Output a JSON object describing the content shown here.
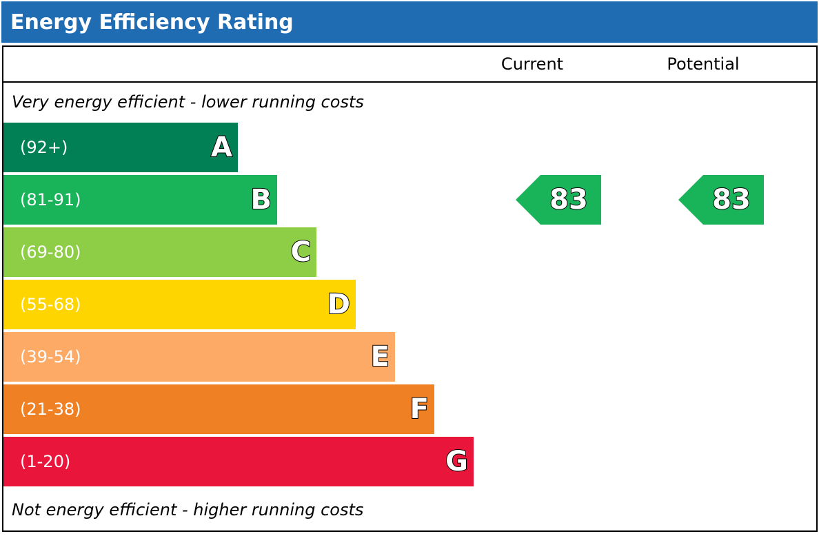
{
  "title": "Energy Efficiency Rating",
  "columns": {
    "current": "Current",
    "potential": "Potential"
  },
  "captions": {
    "top": "Very energy efficient - lower running costs",
    "bottom": "Not energy efficient - higher running costs"
  },
  "colors": {
    "title_bar": "#206cb2",
    "A": "#008054",
    "B": "#19b459",
    "C": "#8dce46",
    "D": "#ffd500",
    "E": "#fcaa65",
    "F": "#ef8023",
    "G": "#e9153b"
  },
  "chart_data": {
    "type": "bar",
    "title": "Energy Efficiency Rating",
    "categories": [
      "A",
      "B",
      "C",
      "D",
      "E",
      "F",
      "G"
    ],
    "bands": [
      {
        "letter": "A",
        "range": "(92+)",
        "min": 92,
        "max": 100,
        "color": "#008054"
      },
      {
        "letter": "B",
        "range": "(81-91)",
        "min": 81,
        "max": 91,
        "color": "#19b459"
      },
      {
        "letter": "C",
        "range": "(69-80)",
        "min": 69,
        "max": 80,
        "color": "#8dce46"
      },
      {
        "letter": "D",
        "range": "(55-68)",
        "min": 55,
        "max": 68,
        "color": "#ffd500"
      },
      {
        "letter": "E",
        "range": "(39-54)",
        "min": 39,
        "max": 54,
        "color": "#fcaa65"
      },
      {
        "letter": "F",
        "range": "(21-38)",
        "min": 21,
        "max": 38,
        "color": "#ef8023"
      },
      {
        "letter": "G",
        "range": "(1-20)",
        "min": 1,
        "max": 20,
        "color": "#e9153b"
      }
    ],
    "current": {
      "value": 83,
      "band": "B"
    },
    "potential": {
      "value": 83,
      "band": "B"
    }
  }
}
